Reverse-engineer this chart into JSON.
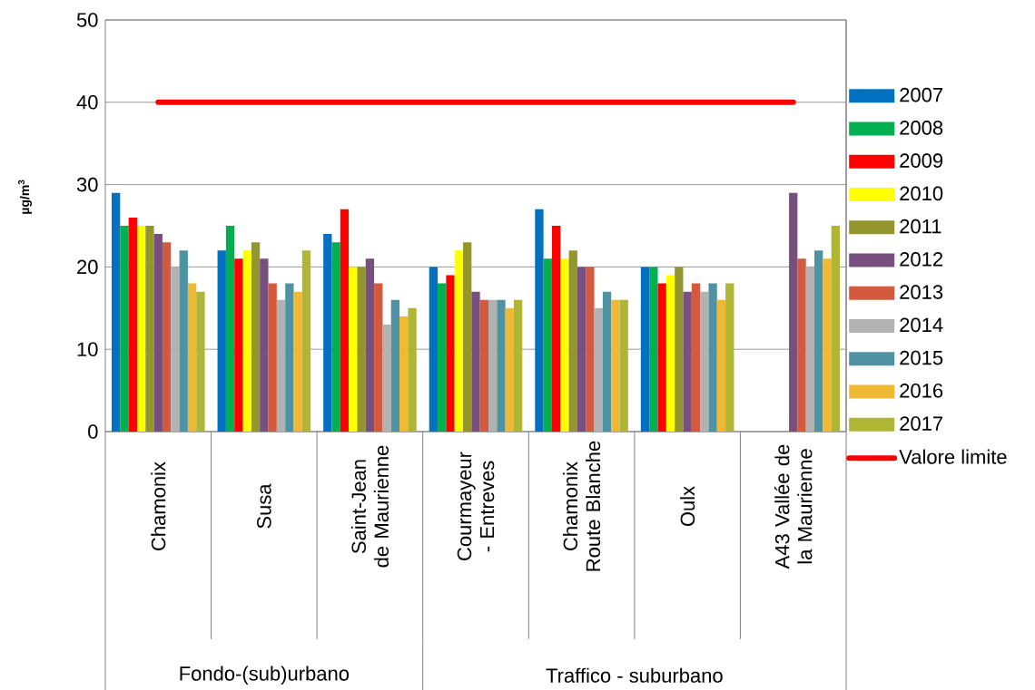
{
  "chart_data": {
    "type": "bar",
    "ylabel": "µg/m$^{3}$",
    "categories": [
      "Chamonix",
      "Susa",
      "Saint-Jean de Maurienne",
      "Courmayeur - Entreves",
      "Chamonix Route Blanche",
      "Oulx",
      "A43 Vallée de la Maurienne"
    ],
    "series": [
      {
        "name": "2007",
        "color": "#0070c0",
        "values": [
          29,
          22,
          24,
          20,
          27,
          20,
          null
        ]
      },
      {
        "name": "2008",
        "color": "#00b050",
        "values": [
          25,
          25,
          23,
          18,
          21,
          20,
          null
        ]
      },
      {
        "name": "2009",
        "color": "#ff0000",
        "values": [
          26,
          21,
          27,
          19,
          25,
          18,
          null
        ]
      },
      {
        "name": "2010",
        "color": "#ffff00",
        "values": [
          25,
          22,
          20,
          22,
          21,
          19,
          null
        ]
      },
      {
        "name": "2011",
        "color": "#92962c",
        "values": [
          25,
          23,
          20,
          23,
          22,
          20,
          null
        ]
      },
      {
        "name": "2012",
        "color": "#77507f",
        "values": [
          24,
          21,
          21,
          17,
          20,
          17,
          29
        ]
      },
      {
        "name": "2013",
        "color": "#d35a3e",
        "values": [
          23,
          18,
          18,
          16,
          20,
          18,
          21
        ]
      },
      {
        "name": "2014",
        "color": "#b2b2b2",
        "values": [
          20,
          16,
          13,
          16,
          15,
          17,
          20
        ]
      },
      {
        "name": "2015",
        "color": "#4f93a3",
        "values": [
          22,
          18,
          16,
          16,
          17,
          18,
          22
        ]
      },
      {
        "name": "2016",
        "color": "#efb934",
        "values": [
          18,
          17,
          14,
          15,
          16,
          16,
          21
        ]
      },
      {
        "name": "2017",
        "color": "#afb535",
        "values": [
          17,
          22,
          15,
          16,
          16,
          18,
          25
        ]
      }
    ],
    "ref_lines": [
      {
        "axis": "y",
        "value": 40,
        "label": "Valore limite",
        "color": "#ff0000"
      }
    ],
    "annotations": [
      "Fondo-(sub)urbano",
      "Traffico - suburbano"
    ],
    "ylim": [
      0,
      50
    ],
    "yticks": [
      0,
      10,
      20,
      30,
      40,
      50
    ],
    "grid": "y",
    "legend": "right"
  }
}
